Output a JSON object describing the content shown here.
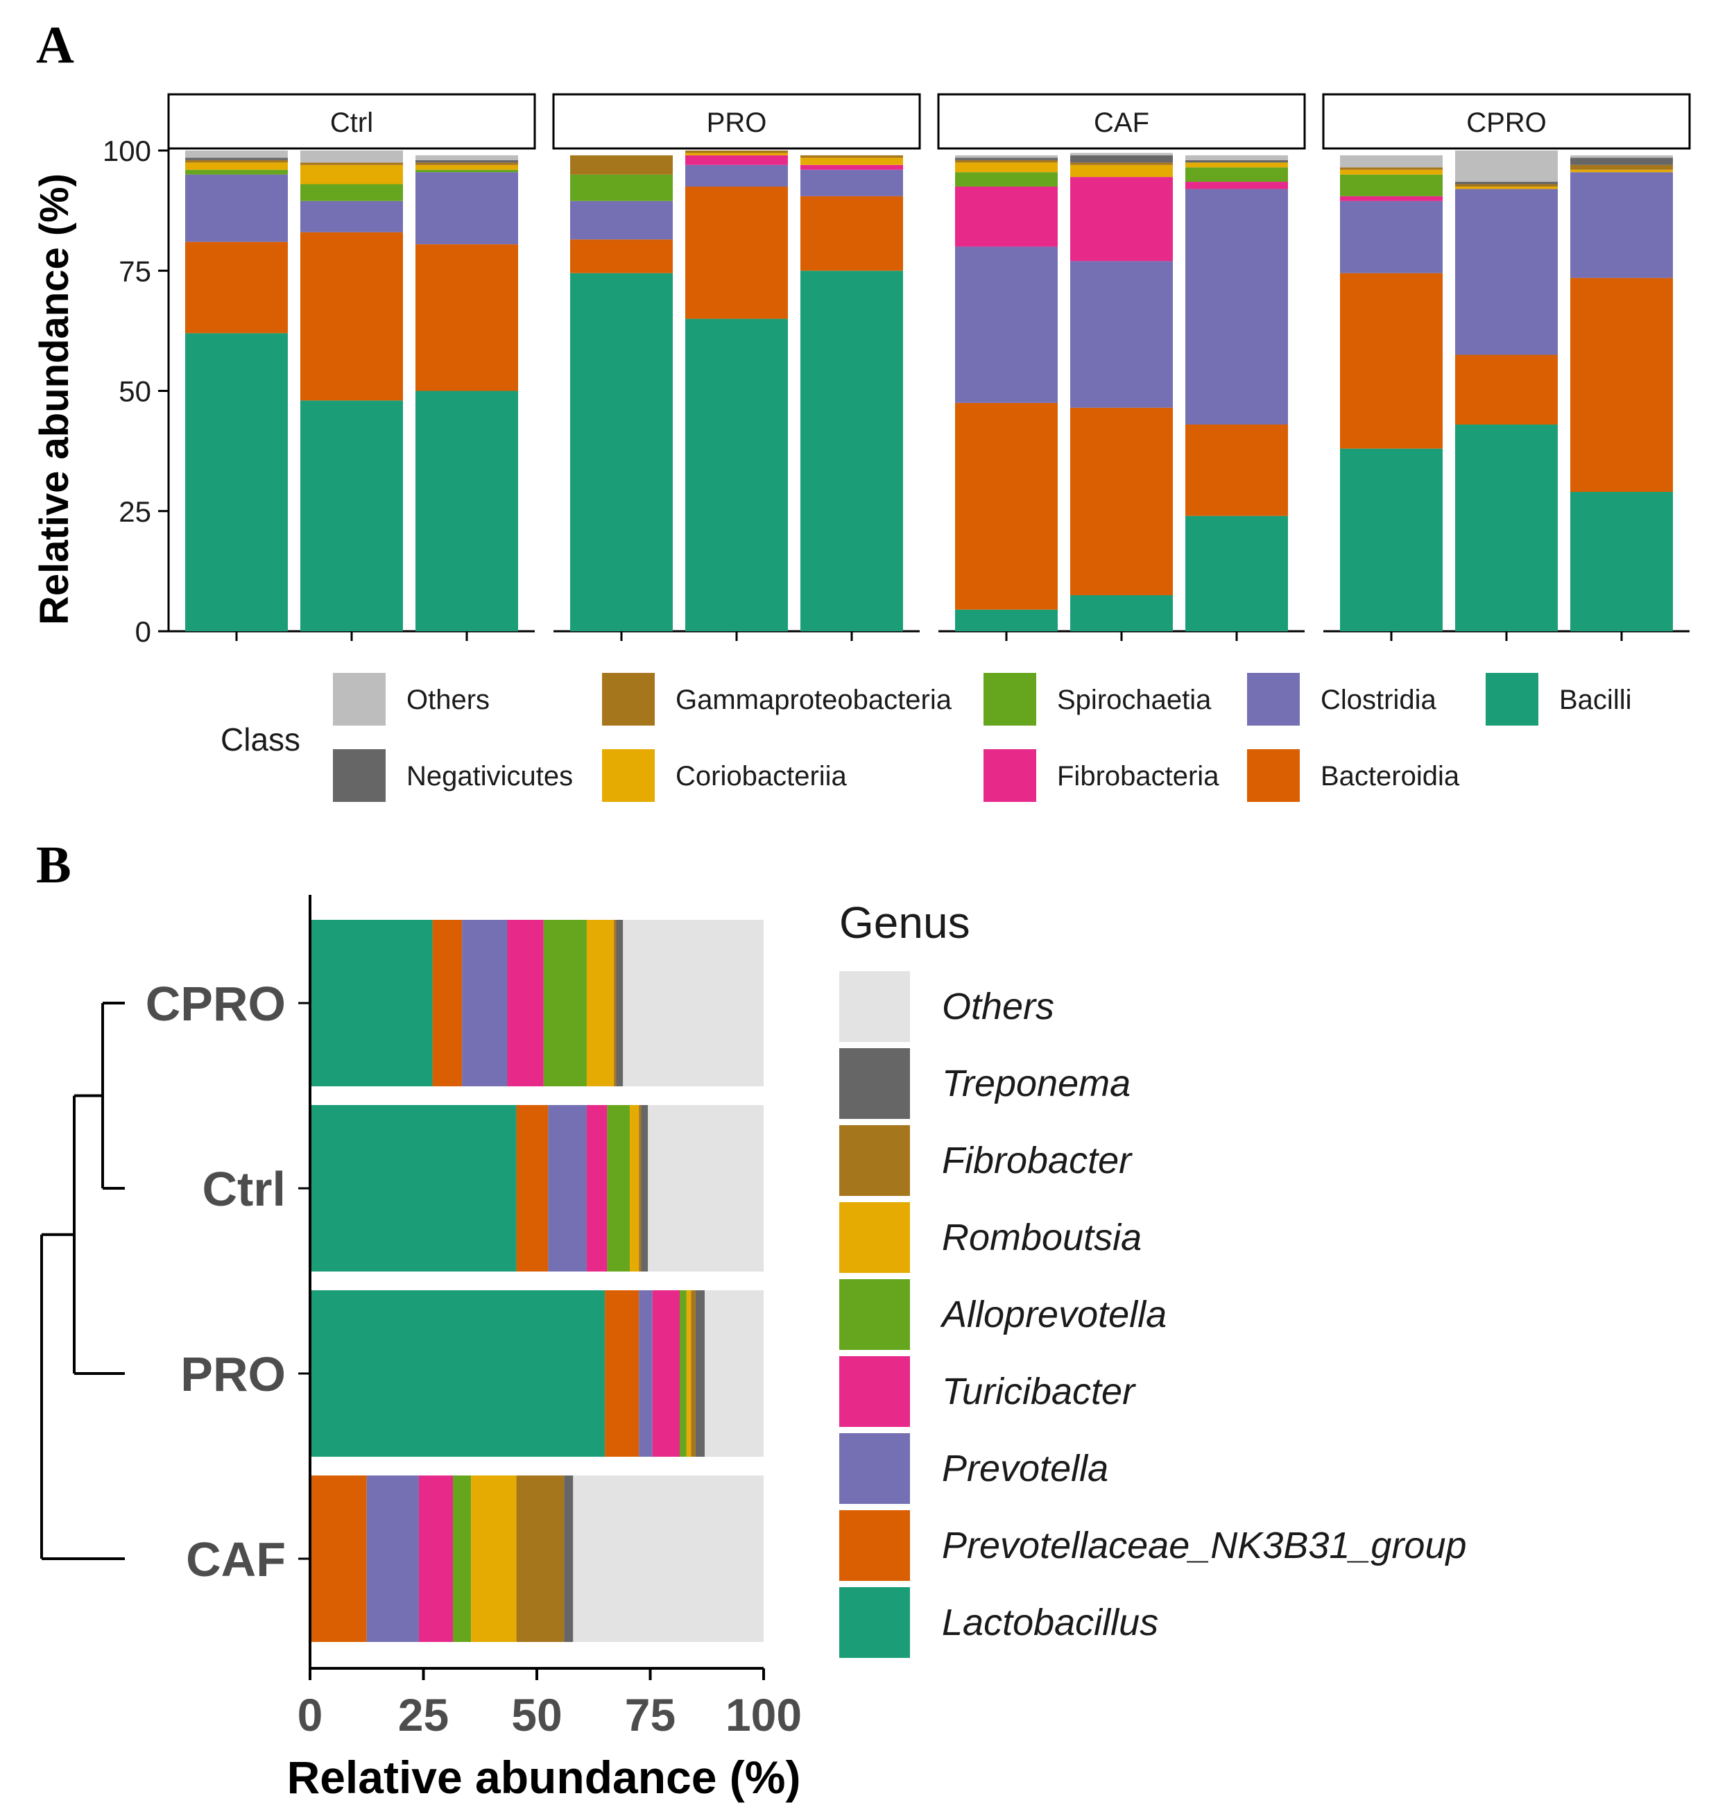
{
  "panel_labels": {
    "a": "A",
    "b": "B"
  },
  "chart_data": [
    {
      "type": "bar",
      "stacked": true,
      "facets": [
        "Ctrl",
        "PRO",
        "CAF",
        "CPRO"
      ],
      "samples_per_facet": 3,
      "ylabel": "Relative abundance (%)",
      "ylim": [
        0,
        100
      ],
      "yticks": [
        "0",
        "25",
        "50",
        "75",
        "100"
      ],
      "legend_title": "Class",
      "legend_position": "bottom",
      "classes": [
        "Bacilli",
        "Bacteroidia",
        "Clostridia",
        "Fibrobacteria",
        "Spirochaetia",
        "Coriobacteriia",
        "Gammaproteobacteria",
        "Negativicutes",
        "Others"
      ],
      "colors": {
        "Bacilli": "#1b9e77",
        "Bacteroidia": "#d95f02",
        "Clostridia": "#7570b3",
        "Fibrobacteria": "#e7298a",
        "Spirochaetia": "#66a61e",
        "Coriobacteriia": "#e6ab02",
        "Gammaproteobacteria": "#a6761d",
        "Negativicutes": "#666666",
        "Others": "#bdbdbd"
      },
      "legend_rows": [
        [
          "Others",
          "Gammaproteobacteria",
          "Spirochaetia",
          "Clostridia",
          "Bacilli"
        ],
        [
          "Negativicutes",
          "Coriobacteriia",
          "Fibrobacteria",
          "Bacteroidia"
        ]
      ],
      "series_values": {
        "Bacilli": [
          62,
          48,
          50,
          74.5,
          65,
          75,
          4.5,
          7.5,
          24,
          38,
          43,
          29
        ],
        "Bacteroidia": [
          19,
          35,
          30.5,
          7,
          27.5,
          15.5,
          43,
          39,
          19,
          36.5,
          14.5,
          44.5
        ],
        "Clostridia": [
          14,
          6.5,
          15,
          8,
          4.5,
          5.5,
          32.5,
          30.5,
          49,
          15,
          34.5,
          22
        ],
        "Fibrobacteria": [
          0,
          0,
          0,
          0,
          2,
          1,
          12.5,
          17.5,
          1.5,
          1,
          0,
          0
        ],
        "Spirochaetia": [
          1,
          3.5,
          0.5,
          5.5,
          0,
          0,
          3,
          0,
          3,
          4.5,
          0,
          0
        ],
        "Coriobacteriia": [
          1.5,
          4,
          1,
          0,
          0.5,
          1.5,
          2,
          2.5,
          1,
          1,
          0.5,
          0.5
        ],
        "Gammaproteobacteria": [
          0.5,
          0.5,
          0.5,
          4,
          0.5,
          0.5,
          0.5,
          0.5,
          0,
          0.5,
          0.5,
          1
        ],
        "Negativicutes": [
          0.5,
          0,
          0.5,
          0,
          0,
          0,
          0.5,
          1.5,
          0.5,
          0,
          0.5,
          1.5
        ],
        "Others": [
          1.5,
          2.5,
          1,
          0,
          0,
          0,
          0.5,
          0.5,
          1,
          2.5,
          6.5,
          0.5
        ]
      }
    },
    {
      "type": "bar",
      "orientation": "horizontal",
      "stacked": true,
      "categories": [
        "CPRO",
        "Ctrl",
        "PRO",
        "CAF"
      ],
      "xlabel": "Relative abundance (%)",
      "xlim": [
        0,
        100
      ],
      "xticks": [
        "0",
        "25",
        "50",
        "75",
        "100"
      ],
      "legend_title": "Genus",
      "legend_position": "right",
      "dendrogram": "((CPRO,Ctrl),PRO),CAF",
      "series": [
        {
          "name": "Lactobacillus",
          "color": "#1b9e77",
          "values": [
            27,
            45.5,
            65,
            0
          ]
        },
        {
          "name": "Prevotellaceae_NK3B31_group",
          "color": "#d95f02",
          "values": [
            6.5,
            7,
            7.5,
            12.5
          ]
        },
        {
          "name": "Prevotella",
          "color": "#7570b3",
          "values": [
            10,
            8.5,
            3,
            11.5
          ]
        },
        {
          "name": "Turicibacter",
          "color": "#e7298a",
          "values": [
            8,
            4.5,
            6,
            7.5
          ]
        },
        {
          "name": "Alloprevotella",
          "color": "#66a61e",
          "values": [
            9.5,
            5,
            1.5,
            4
          ]
        },
        {
          "name": "Romboutsia",
          "color": "#e6ab02",
          "values": [
            6,
            2,
            1,
            10
          ]
        },
        {
          "name": "Fibrobacter",
          "color": "#a6761d",
          "values": [
            0.5,
            0.5,
            1,
            10.5
          ]
        },
        {
          "name": "Treponema",
          "color": "#666666",
          "values": [
            1.5,
            1.5,
            2,
            2
          ]
        },
        {
          "name": "Others",
          "color": "#e3e3e3",
          "values": [
            31,
            25.5,
            13,
            42
          ]
        }
      ],
      "legend_order": [
        "Others",
        "Treponema",
        "Fibrobacter",
        "Romboutsia",
        "Alloprevotella",
        "Turicibacter",
        "Prevotella",
        "Prevotellaceae_NK3B31_group",
        "Lactobacillus"
      ]
    }
  ]
}
